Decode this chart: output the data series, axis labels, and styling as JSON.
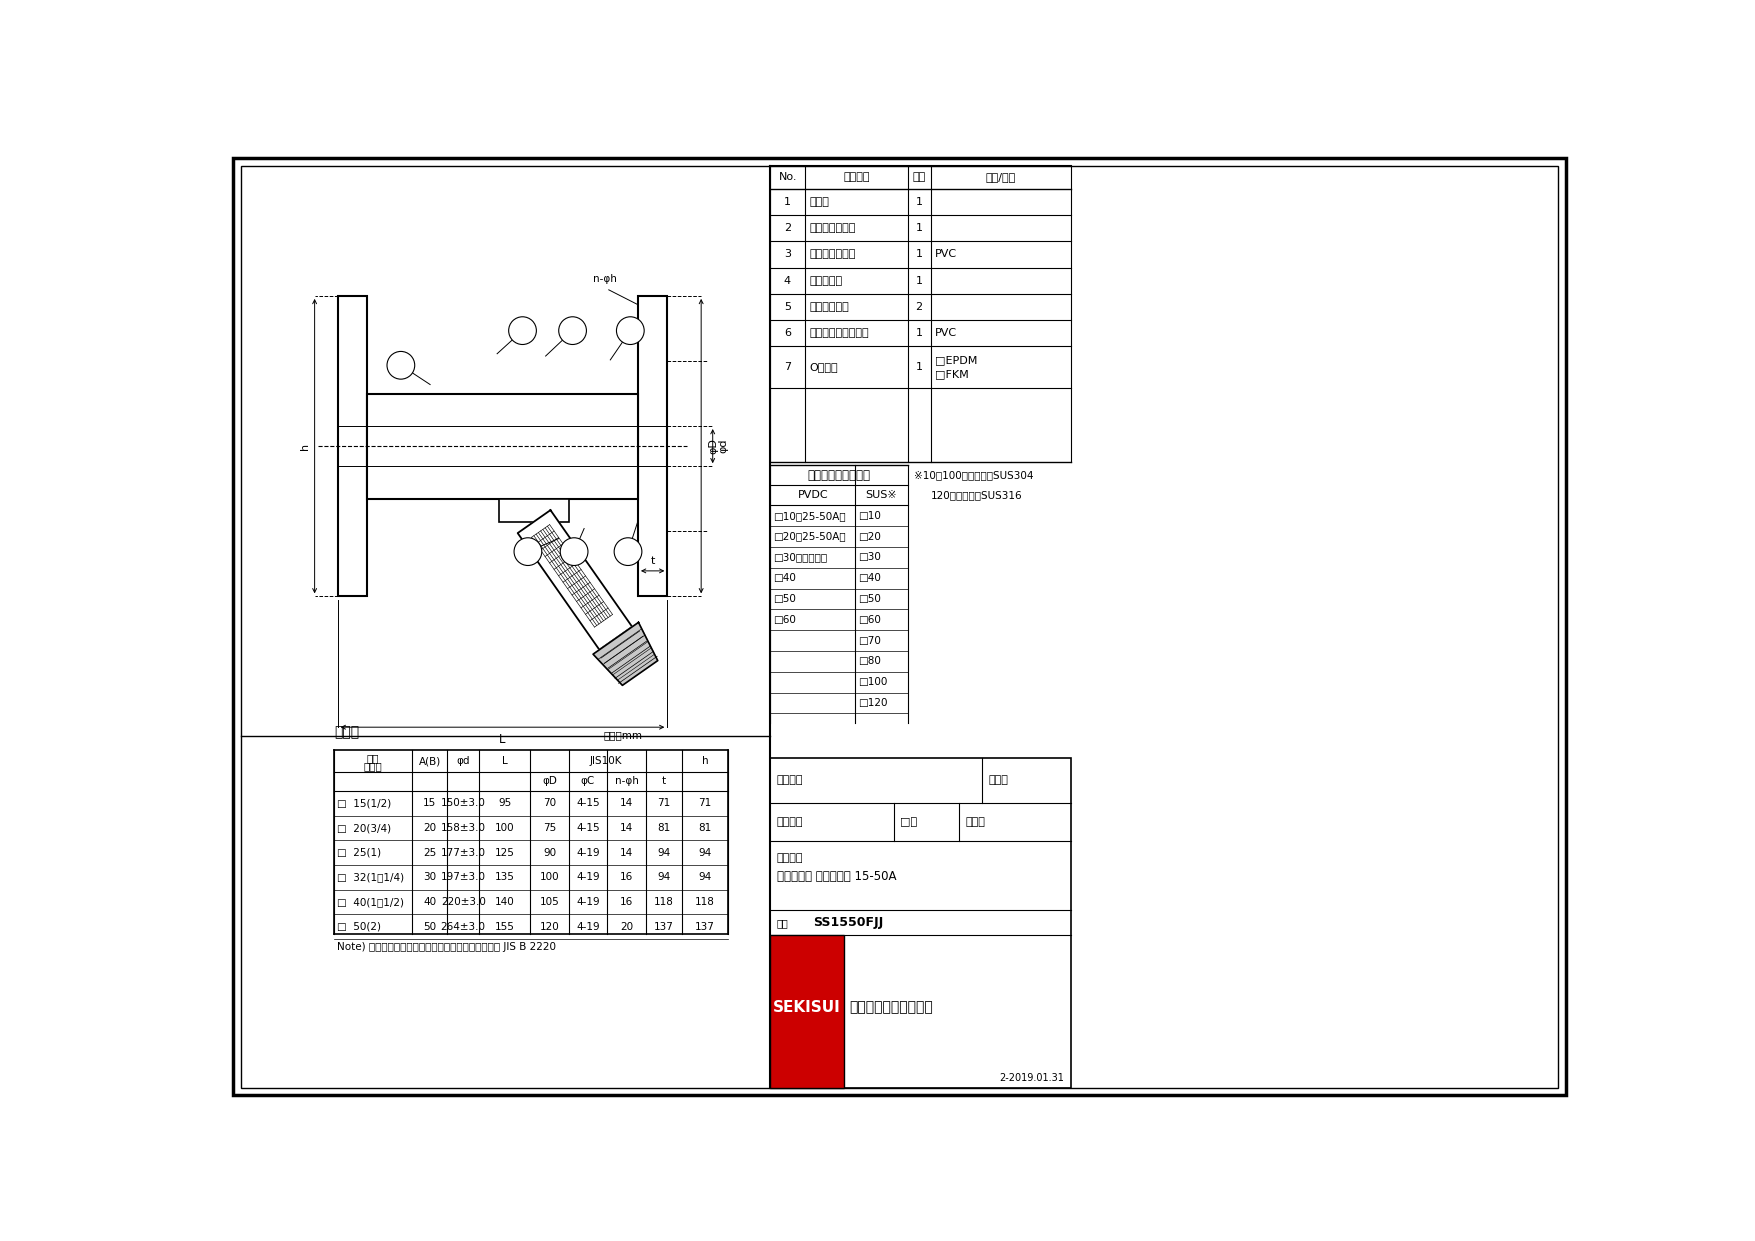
{
  "parts_table": {
    "headers": [
      "No.",
      "部品名称",
      "数量",
      "材質/型式"
    ],
    "rows": [
      [
        "1",
        "ボディ",
        "1",
        ""
      ],
      [
        "2",
        "オープンリング",
        "1",
        ""
      ],
      [
        "3",
        "キャップナット",
        "1",
        "PVC"
      ],
      [
        "4",
        "ボンネット",
        "1",
        ""
      ],
      [
        "5",
        "フランジ受口",
        "2",
        ""
      ],
      [
        "6",
        "スクリーン付ホルダ",
        "1",
        "PVC"
      ],
      [
        "7",
        "Oリング",
        "1",
        "□EPDM\n□FKM"
      ]
    ]
  },
  "mesh_table": {
    "title": "スクリーンメッシュ",
    "note1": "※10～100メッシュ：SUS304",
    "note2": "120メッシュ：SUS316",
    "col_headers": [
      "PVDC",
      "SUS※"
    ],
    "rows": [
      [
        "□10（25-50A）",
        "□10"
      ],
      [
        "□20（25-50A）",
        "□20"
      ],
      [
        "□30（標準品）",
        "□30"
      ],
      [
        "□40",
        "□40"
      ],
      [
        "□50",
        "□50"
      ],
      [
        "□60",
        "□60"
      ],
      [
        "",
        "□70"
      ],
      [
        "",
        "□80"
      ],
      [
        "",
        "□100"
      ],
      [
        "",
        "□120"
      ]
    ]
  },
  "dim_table": {
    "title": "寸法表",
    "unit": "単位：mm",
    "note": "Note) フランジ寸法は次の規格を参考にしています。 JIS B 2220",
    "rows": [
      [
        "□  15(1/2)",
        "15",
        "150±3.0",
        "95",
        "70",
        "4-15",
        "14",
        "71"
      ],
      [
        "□  20(3/4)",
        "20",
        "158±3.0",
        "100",
        "75",
        "4-15",
        "14",
        "81"
      ],
      [
        "□  25(1)",
        "25",
        "177±3.0",
        "125",
        "90",
        "4-19",
        "14",
        "94"
      ],
      [
        "□  32(1・1/4)",
        "30",
        "197±3.0",
        "135",
        "100",
        "4-19",
        "16",
        "94"
      ],
      [
        "□  40(1・1/2)",
        "40",
        "220±3.0",
        "140",
        "105",
        "4-19",
        "16",
        "118"
      ],
      [
        "□  50(2)",
        "50",
        "264±3.0",
        "155",
        "120",
        "4-19",
        "20",
        "137"
      ]
    ]
  },
  "title_block": {
    "customer": "お客様名",
    "date_label": "記入日",
    "wash": "洗浄処理",
    "required": "□要",
    "stamp": "受取印",
    "product_line1": "エスロン",
    "product_line2": "ストレーナ フランジ式 15-50A",
    "drawing_no_label": "図番",
    "drawing_no": "SS1550FJJ",
    "company_brand": "SEKISUI",
    "company_name": "積水化学工業株式会社",
    "revision": "2-2019.01.31"
  }
}
